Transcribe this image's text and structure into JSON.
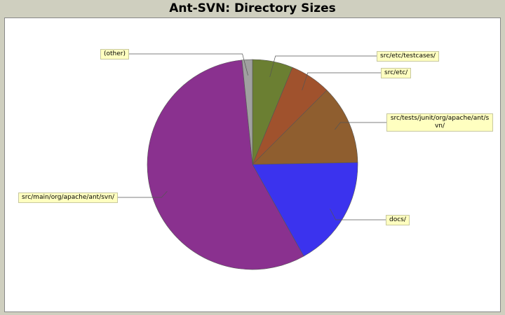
{
  "chart_data": {
    "type": "pie",
    "title": "Ant-SVN: Directory Sizes",
    "categories": [
      "src/etc/testcases/",
      "src/etc/",
      "src/tests/junit/org/apache/ant/svn/",
      "docs/",
      "src/main/org/apache/ant/svn/",
      "(other)"
    ],
    "values": [
      6.2,
      6.3,
      12.2,
      17.2,
      56.5,
      1.6
    ],
    "colors": [
      "#6b7f32",
      "#a0522d",
      "#8f5e2f",
      "#3b33ee",
      "#8a318f",
      "#a0a0a0"
    ]
  }
}
